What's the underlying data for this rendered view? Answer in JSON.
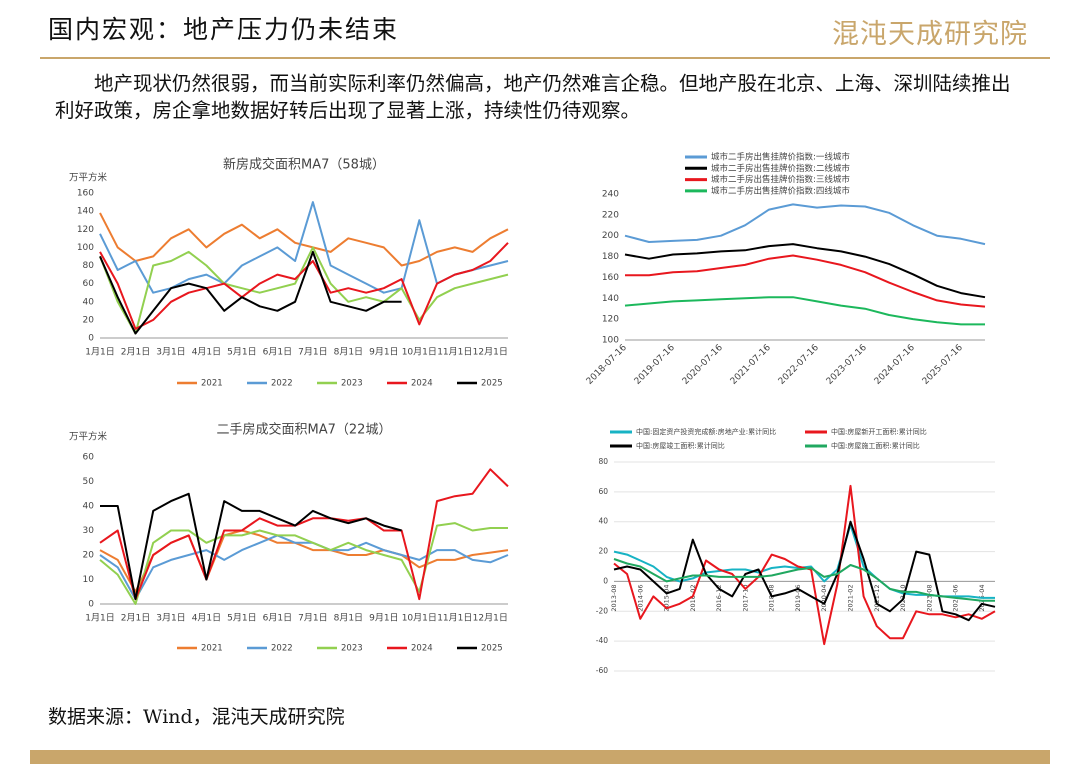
{
  "header": {
    "title": "国内宏观：地产压力仍未结束",
    "logo": "混沌天成研究院"
  },
  "body": "地产现状仍然很弱，而当前实际利率仍然偏高，地产仍然难言企稳。但地产股在北京、上海、深圳陆续推出利好政策，房企拿地数据好转后出现了显著上涨，持续性仍待观察。",
  "source": "数据来源：Wind，混沌天成研究院",
  "chart_data": [
    {
      "type": "line",
      "title": "新房成交面积MA7（58城）",
      "y_label": "万平方米",
      "categories": [
        "1月1日",
        null,
        "2月1日",
        null,
        "3月1日",
        null,
        "4月1日",
        null,
        "5月1日",
        null,
        "6月1日",
        null,
        "7月1日",
        null,
        "8月1日",
        null,
        "9月1日",
        null,
        "10月1日",
        null,
        "11月1日",
        null,
        "12月1日",
        null
      ],
      "ylim": [
        0,
        160
      ],
      "yticks": [
        0,
        20,
        40,
        60,
        80,
        100,
        120,
        140,
        160
      ],
      "grid": false,
      "legend": "bottom",
      "series": [
        {
          "name": "2021",
          "color": "#ED7D31",
          "values": [
            138,
            100,
            85,
            90,
            110,
            120,
            100,
            115,
            125,
            110,
            120,
            105,
            100,
            95,
            110,
            105,
            100,
            80,
            85,
            95,
            100,
            95,
            110,
            120
          ]
        },
        {
          "name": "2022",
          "color": "#5B9BD5",
          "values": [
            115,
            75,
            85,
            50,
            55,
            65,
            70,
            60,
            80,
            90,
            100,
            85,
            150,
            80,
            70,
            60,
            50,
            55,
            130,
            60,
            70,
            75,
            80,
            85
          ]
        },
        {
          "name": "2023",
          "color": "#92D050",
          "values": [
            90,
            40,
            5,
            80,
            85,
            95,
            80,
            60,
            55,
            50,
            55,
            60,
            100,
            60,
            40,
            45,
            40,
            55,
            20,
            45,
            55,
            60,
            65,
            70
          ]
        },
        {
          "name": "2024",
          "color": "#E8171E",
          "values": [
            95,
            60,
            10,
            20,
            40,
            50,
            55,
            60,
            45,
            60,
            70,
            65,
            85,
            50,
            55,
            50,
            55,
            65,
            15,
            60,
            70,
            75,
            85,
            105
          ]
        },
        {
          "name": "2025",
          "color": "#000000",
          "values": [
            90,
            45,
            5,
            30,
            55,
            60,
            55,
            30,
            45,
            35,
            30,
            40,
            95,
            40,
            35,
            30,
            40,
            40,
            null,
            null,
            null,
            null,
            null,
            null
          ]
        }
      ]
    },
    {
      "type": "line",
      "title": "二手房成交面积MA7（22城）",
      "y_label": "万平方米",
      "categories": [
        "1月1日",
        null,
        "2月1日",
        null,
        "3月1日",
        null,
        "4月1日",
        null,
        "5月1日",
        null,
        "6月1日",
        null,
        "7月1日",
        null,
        "8月1日",
        null,
        "9月1日",
        null,
        "10月1日",
        null,
        "11月1日",
        null,
        "12月1日",
        null
      ],
      "ylim": [
        0,
        60
      ],
      "yticks": [
        0,
        10,
        20,
        30,
        40,
        50,
        60
      ],
      "grid": false,
      "legend": "bottom",
      "series": [
        {
          "name": "2021",
          "color": "#ED7D31",
          "values": [
            22,
            18,
            5,
            20,
            25,
            28,
            10,
            28,
            30,
            28,
            25,
            25,
            22,
            22,
            20,
            20,
            22,
            20,
            15,
            18,
            18,
            20,
            21,
            22
          ]
        },
        {
          "name": "2022",
          "color": "#5B9BD5",
          "values": [
            20,
            15,
            2,
            15,
            18,
            20,
            22,
            18,
            22,
            25,
            28,
            25,
            25,
            22,
            22,
            25,
            22,
            20,
            18,
            22,
            22,
            18,
            17,
            20
          ]
        },
        {
          "name": "2023",
          "color": "#92D050",
          "values": [
            18,
            12,
            0,
            25,
            30,
            30,
            25,
            28,
            28,
            30,
            28,
            28,
            25,
            22,
            25,
            22,
            20,
            18,
            5,
            32,
            33,
            30,
            31,
            31
          ]
        },
        {
          "name": "2024",
          "color": "#E8171E",
          "values": [
            25,
            30,
            2,
            20,
            25,
            28,
            10,
            30,
            30,
            35,
            32,
            32,
            35,
            35,
            34,
            35,
            30,
            30,
            2,
            42,
            44,
            45,
            55,
            48
          ]
        },
        {
          "name": "2025",
          "color": "#000000",
          "values": [
            40,
            40,
            2,
            38,
            42,
            45,
            10,
            42,
            38,
            38,
            35,
            32,
            38,
            35,
            33,
            35,
            32,
            30,
            null,
            null,
            null,
            null,
            null,
            null
          ]
        }
      ]
    },
    {
      "type": "line",
      "categories": [
        "2018-07-16",
        null,
        "2019-07-16",
        null,
        "2020-07-16",
        null,
        "2021-07-16",
        null,
        "2022-07-16",
        null,
        "2023-07-16",
        null,
        "2024-07-16",
        null,
        "2025-07-16",
        null
      ],
      "ylim": [
        100,
        240
      ],
      "yticks": [
        100,
        120,
        140,
        160,
        180,
        200,
        220,
        240
      ],
      "grid": false,
      "legend": "top",
      "series": [
        {
          "name": "城市二手房出售挂牌价指数:一线城市",
          "color": "#5B9BD5",
          "values": [
            200,
            194,
            195,
            196,
            200,
            210,
            225,
            230,
            227,
            229,
            228,
            222,
            210,
            200,
            197,
            192
          ]
        },
        {
          "name": "城市二手房出售挂牌价指数:二线城市",
          "color": "#000000",
          "values": [
            182,
            178,
            182,
            183,
            185,
            186,
            190,
            192,
            188,
            185,
            180,
            173,
            163,
            152,
            145,
            141
          ]
        },
        {
          "name": "城市二手房出售挂牌价指数:三线城市",
          "color": "#E8171E",
          "values": [
            162,
            162,
            165,
            166,
            169,
            172,
            178,
            181,
            177,
            172,
            165,
            155,
            146,
            138,
            134,
            132
          ]
        },
        {
          "name": "城市二手房出售挂牌价指数:四线城市",
          "color": "#1CB85C",
          "values": [
            133,
            135,
            137,
            138,
            139,
            140,
            141,
            141,
            137,
            133,
            130,
            124,
            120,
            117,
            115,
            115
          ]
        }
      ]
    },
    {
      "type": "line",
      "categories": [
        "2013-08",
        null,
        "2014-06",
        null,
        "2015-04",
        null,
        "2016-02",
        null,
        "2016-12",
        null,
        "2017-10",
        null,
        "2018-08",
        null,
        "2019-06",
        null,
        "2020-04",
        null,
        "2021-02",
        null,
        "2021-12",
        null,
        "2022-10",
        null,
        "2023-08",
        null,
        "2024-06",
        null,
        "2025-04",
        null
      ],
      "ylim": [
        -60,
        80
      ],
      "yticks": [
        -60,
        -40,
        -20,
        0,
        20,
        40,
        60,
        80
      ],
      "grid": true,
      "legend": "top",
      "series": [
        {
          "name": "中国:固定资产投资完成额:房地产业:累计同比",
          "color": "#17B3C4",
          "values": [
            20,
            18,
            14,
            10,
            3,
            0,
            2,
            6,
            7,
            8,
            8,
            6,
            9,
            10,
            9,
            10,
            0,
            8,
            38,
            10,
            2,
            -5,
            -8,
            -9,
            -9,
            -10,
            -10,
            -10,
            -11,
            -11
          ]
        },
        {
          "name": "中国:房屋新开工面积:累计同比",
          "color": "#E8171E",
          "values": [
            12,
            5,
            -25,
            -10,
            -18,
            -15,
            -10,
            14,
            8,
            5,
            -5,
            3,
            18,
            15,
            10,
            8,
            -42,
            -2,
            64,
            -10,
            -30,
            -38,
            -38,
            -20,
            -22,
            -22,
            -24,
            -22,
            -25,
            -20
          ]
        },
        {
          "name": "中国:房屋竣工面积:累计同比",
          "color": "#000000",
          "values": [
            8,
            10,
            8,
            0,
            -8,
            -5,
            28,
            5,
            -5,
            -10,
            5,
            8,
            -10,
            -8,
            -5,
            -10,
            -15,
            5,
            40,
            15,
            -15,
            -20,
            -12,
            20,
            18,
            -20,
            -22,
            -26,
            -15,
            -17
          ]
        },
        {
          "name": "中国:房屋施工面积:累计同比",
          "color": "#20A860",
          "values": [
            15,
            12,
            10,
            5,
            0,
            2,
            4,
            4,
            3,
            3,
            3,
            3,
            4,
            6,
            8,
            9,
            3,
            5,
            11,
            8,
            2,
            -5,
            -7,
            -7,
            -9,
            -10,
            -11,
            -12,
            -13,
            -13
          ]
        }
      ]
    }
  ]
}
